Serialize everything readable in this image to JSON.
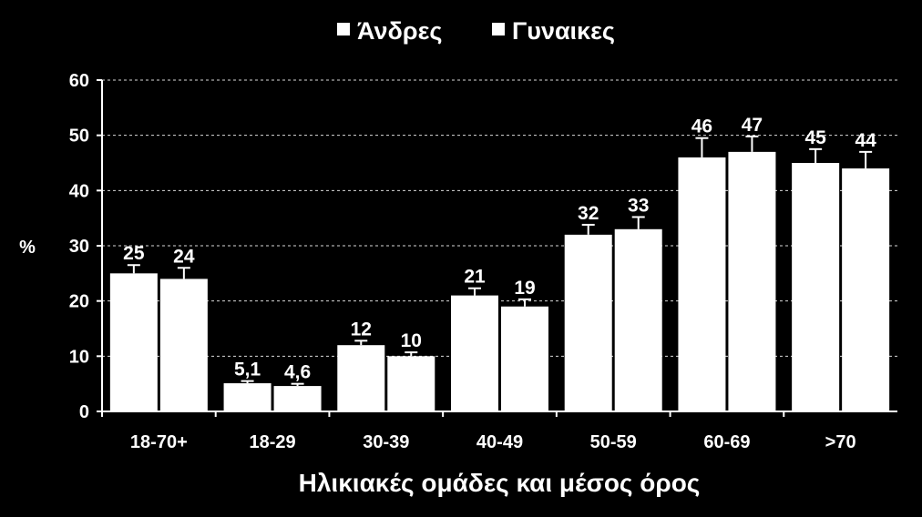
{
  "chart_data": {
    "type": "bar",
    "title": "",
    "xlabel": "Ηλικιακές   ομάδες   και   μέσος   όρος",
    "ylabel": "%",
    "ylim": [
      0,
      60
    ],
    "yticks": [
      0,
      10,
      20,
      30,
      40,
      50,
      60
    ],
    "grid": true,
    "legend_position": "top-center",
    "categories": [
      "18-70+",
      "18-29",
      "30-39",
      "40-49",
      "50-59",
      "60-69",
      ">70"
    ],
    "series": [
      {
        "name": "Άνδρες",
        "values": [
          25,
          5.1,
          12,
          21,
          32,
          46,
          45
        ],
        "labels": [
          "25",
          "5,1",
          "12",
          "21",
          "32",
          "46",
          "45"
        ],
        "errors": [
          1.5,
          0.4,
          0.8,
          1.3,
          1.8,
          3.5,
          2.5
        ]
      },
      {
        "name": "Γυναικες",
        "values": [
          24,
          4.6,
          10,
          19,
          33,
          47,
          44
        ],
        "labels": [
          "24",
          "4,6",
          "10",
          "19",
          "33",
          "47",
          "44"
        ],
        "errors": [
          2,
          0.4,
          0.7,
          1.3,
          2.2,
          2.8,
          3
        ]
      }
    ],
    "colors": {
      "background": "#000000",
      "bar_fill": "#ffffff",
      "text": "#ffffff",
      "grid": "#ffffff"
    }
  }
}
